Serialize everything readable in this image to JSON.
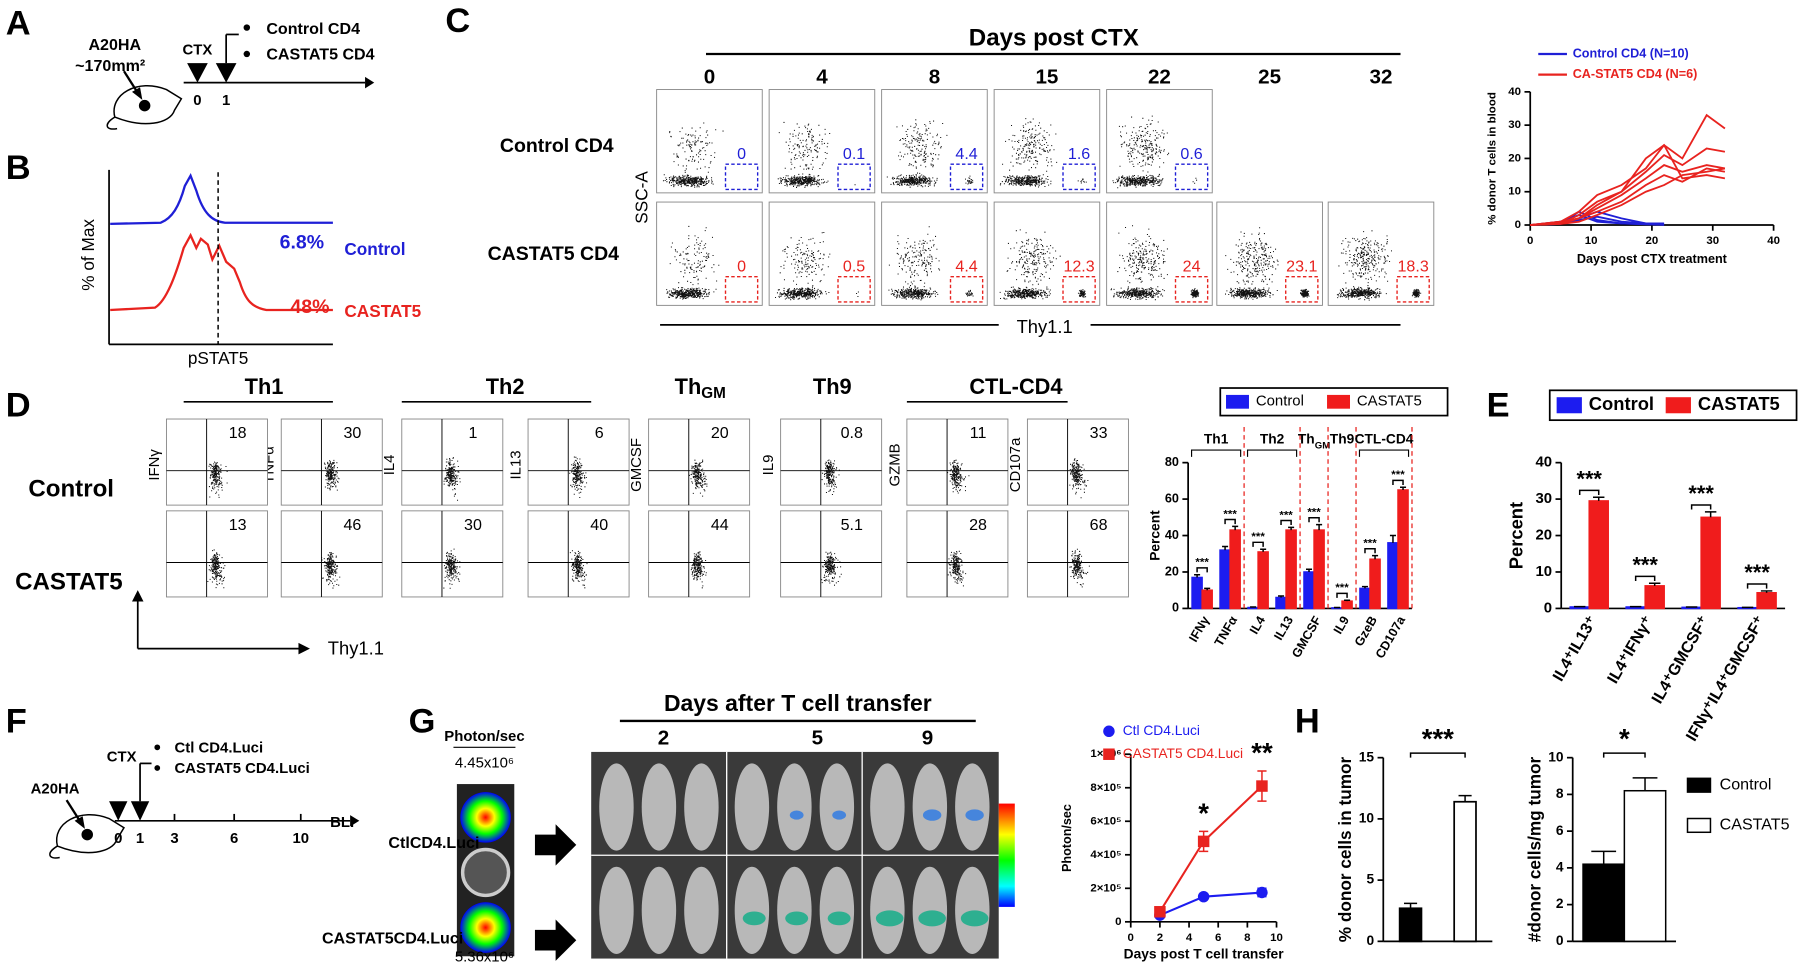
{
  "panel_a": {
    "letter": "A",
    "tumor": "A20HA",
    "size": "~170mm²",
    "treatment": "CTX",
    "days": [
      "0",
      "1"
    ],
    "groups": [
      "Control CD4",
      "CASTAT5 CD4"
    ]
  },
  "panel_b": {
    "letter": "B",
    "y_label": "% of Max",
    "x_label": "pSTAT5",
    "control_pct": "6.8%",
    "control": "Control",
    "castat5_pct": "48%",
    "castat5": "CASTAT5"
  },
  "panel_c": {
    "letter": "C",
    "header": "Days post CTX",
    "days": [
      "0",
      "4",
      "8",
      "15",
      "22",
      "25",
      "32"
    ],
    "rows": [
      "Control CD4",
      "CASTAT5 CD4"
    ],
    "y_label": "SSC-A",
    "x_label": "Thy1.1",
    "gates": [
      [
        "0",
        "0.1",
        "4.4",
        "1.6",
        "0.6"
      ],
      [
        "0",
        "0.5",
        "4.4",
        "12.3",
        "24",
        "23.1",
        "18.3"
      ]
    ]
  },
  "panel_d": {
    "letter": "D",
    "groups": [
      "Th1",
      "Th2",
      {
        "main": "Th",
        "sub": "GM"
      },
      "Th9",
      "CTL-CD4"
    ],
    "rows": [
      "Control",
      "CASTAT5"
    ],
    "markers": [
      "IFNγ",
      "TNFα",
      "IL4",
      "IL13",
      "GMCSF",
      "IL9",
      "GZMB",
      "CD107a"
    ],
    "gates": [
      [
        "18",
        "30",
        "1",
        "6",
        "20",
        "0.8",
        "11",
        "33"
      ],
      [
        "13",
        "46",
        "30",
        "40",
        "44",
        "5.1",
        "28",
        "68"
      ]
    ],
    "x_label": "Thy1.1"
  },
  "panel_e": {
    "letter": "E"
  },
  "panel_f": {
    "letter": "F",
    "tumor": "A20HA",
    "treatment": "CTX",
    "groups": [
      "Ctl CD4.Luci",
      "CASTAT5 CD4.Luci"
    ],
    "days": [
      "0",
      "1",
      "3",
      "6",
      "10"
    ],
    "readout": "BLI"
  },
  "panel_g": {
    "letter": "G",
    "scale_title": "Photon/sec",
    "max_top": "4.45x10⁶",
    "max_bottom": "5.36x10⁶",
    "rows": [
      "CtlCD4.Luci",
      "CASTAT5CD4.Luci"
    ],
    "header": "Days after T cell transfer",
    "days": [
      "2",
      "5",
      "9"
    ]
  },
  "panel_h": {
    "letter": "H"
  },
  "chart_data": [
    {
      "type": "line",
      "x_label": "Days post CTX treatment",
      "y_label": "%  donor T cells in blood",
      "x": [
        0,
        5,
        8,
        11,
        15,
        19,
        22,
        25,
        29,
        32
      ],
      "xlim": [
        0,
        40
      ],
      "xticks": [
        0,
        10,
        20,
        30,
        40
      ],
      "ylim": [
        0,
        40
      ],
      "yticks": [
        0,
        10,
        20,
        30,
        40
      ],
      "series": [
        {
          "name": "Control CD4 (N=10)",
          "color": "#1f1fd6",
          "lines": [
            [
              0,
              0.5,
              2,
              4,
              2,
              0.5,
              0,
              null,
              null,
              null
            ],
            [
              0,
              1,
              3,
              1,
              0.5,
              0.3,
              0.2,
              null,
              null,
              null
            ],
            [
              0,
              0.5,
              1.5,
              2.5,
              1,
              0.5,
              0.5,
              null,
              null,
              null
            ],
            [
              0,
              0.3,
              4,
              1.5,
              0.5,
              0.2,
              0.1,
              null,
              null,
              null
            ]
          ]
        },
        {
          "name": "CA-STAT5 CD4 (N=6)",
          "color": "#e8231f",
          "lines": [
            [
              0,
              1,
              4,
              9,
              12,
              17,
              24,
              20,
              33,
              29
            ],
            [
              0,
              0.5,
              3,
              7,
              10,
              16,
              21,
              18,
              23,
              22
            ],
            [
              0,
              1,
              2,
              5,
              9,
              14,
              18,
              16,
              18,
              17
            ],
            [
              0,
              0.5,
              2,
              4,
              7,
              12,
              15,
              13,
              17,
              16
            ],
            [
              0,
              0.3,
              1,
              3,
              6,
              10,
              12,
              15,
              16,
              17
            ],
            [
              0,
              0.5,
              2,
              6,
              10,
              20,
              24,
              14,
              15,
              14
            ]
          ]
        }
      ]
    },
    {
      "type": "bar",
      "y_label": "Percent",
      "categories": [
        "IFNγ",
        "TNFα",
        "IL4",
        "IL13",
        "GMCSF",
        "IL9",
        "GzeB",
        "CD107a"
      ],
      "ylim": [
        0,
        80
      ],
      "yticks": [
        0,
        20,
        40,
        60,
        80
      ],
      "groups": [
        {
          "label": "Th1",
          "from": 0,
          "to": 1
        },
        {
          "label": "Th2",
          "from": 2,
          "to": 3
        },
        {
          "label": {
            "main": "Th",
            "sub": "GM"
          },
          "from": 4,
          "to": 4
        },
        {
          "label": "Th9",
          "from": 5,
          "to": 5
        },
        {
          "label": "CTL-CD4",
          "from": 6,
          "to": 7
        }
      ],
      "series": [
        {
          "name": "Control",
          "color": "#1c1cf0",
          "values": [
            17,
            32,
            0.5,
            6,
            20,
            0.3,
            11,
            36
          ],
          "errors": [
            1.5,
            2,
            0.3,
            0.8,
            1.5,
            0.2,
            1,
            4
          ]
        },
        {
          "name": "CASTAT5",
          "color": "#f01c1c",
          "values": [
            10,
            43,
            31,
            43,
            43,
            4,
            27,
            65
          ],
          "errors": [
            1,
            2,
            1.5,
            1.5,
            3,
            0.5,
            2,
            1.5
          ]
        }
      ],
      "significance": [
        "***",
        "***",
        "***",
        "***",
        "***",
        "***",
        "***",
        "***"
      ]
    },
    {
      "type": "bar",
      "y_label": "Percent",
      "categories": [
        "IL4⁺IL13⁺",
        "IL4⁺IFNγ⁺",
        "IL4⁺GMCSF⁺",
        "IFNγ⁺IL4⁺GMCSF⁺"
      ],
      "ylim": [
        0,
        40
      ],
      "yticks": [
        0,
        10,
        20,
        30,
        40
      ],
      "series": [
        {
          "name": "Control",
          "color": "#1c1cf0",
          "values": [
            0.4,
            0.4,
            0.3,
            0.2
          ],
          "errors": [
            0.1,
            0.1,
            0.1,
            0.1
          ]
        },
        {
          "name": "CASTAT5",
          "color": "#f01c1c",
          "values": [
            29.5,
            6.2,
            25,
            4.3
          ],
          "errors": [
            1,
            0.7,
            1.5,
            0.5
          ]
        }
      ],
      "significance": [
        "***",
        "***",
        "***",
        "***"
      ]
    },
    {
      "type": "line",
      "x_label": "Days post T cell transfer",
      "y_label": "Photon/sec",
      "x": [
        2,
        5,
        9
      ],
      "xlim": [
        0,
        10
      ],
      "xticks": [
        0,
        2,
        4,
        6,
        8,
        10
      ],
      "ylim": [
        0,
        1000000
      ],
      "yticks": [
        0,
        {
          "value": 200000,
          "label": "2×10⁵"
        },
        {
          "value": 400000,
          "label": "4×10⁵"
        },
        {
          "value": 600000,
          "label": "6×10⁵"
        },
        {
          "value": 800000,
          "label": "8×10⁵"
        },
        {
          "value": 1000000,
          "label": "1×10⁶"
        }
      ],
      "series": [
        {
          "name": "Ctl CD4.Luci",
          "color": "#1c1cf0",
          "marker": "circle",
          "values": [
            40000,
            150000,
            175000
          ],
          "errors": [
            5000,
            10000,
            25000
          ]
        },
        {
          "name": "CASTAT5 CD4.Luci",
          "color": "#e8231f",
          "marker": "square",
          "values": [
            60000,
            480000,
            810000
          ],
          "errors": [
            10000,
            60000,
            90000
          ]
        }
      ],
      "significance": [
        null,
        "*",
        "**"
      ]
    },
    {
      "type": "bar",
      "y_label": "% donor cells in tumor",
      "values": [
        2.7,
        11.4
      ],
      "errors": [
        0.4,
        0.5
      ],
      "colors": [
        "#000000",
        "#ffffff"
      ],
      "ylim": [
        0,
        15
      ],
      "yticks": [
        0,
        5,
        10,
        15
      ],
      "significance": "***"
    },
    {
      "type": "bar",
      "y_label": "#donor cells/mg tumor",
      "ylim": [
        0,
        10
      ],
      "yticks": [
        0,
        2,
        4,
        6,
        8,
        10
      ],
      "series": [
        {
          "name": "Control",
          "color": "#000000",
          "values": [
            4.2
          ],
          "errors": [
            0.7
          ]
        },
        {
          "name": "CASTAT5",
          "color": "#ffffff",
          "values": [
            8.2
          ],
          "errors": [
            0.7
          ]
        }
      ],
      "significance": [
        "*"
      ]
    }
  ]
}
